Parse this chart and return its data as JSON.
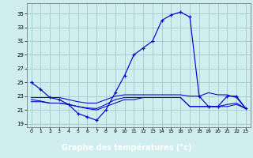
{
  "xlabel": "Graphe des températures (°c)",
  "bg_color": "#d0eef0",
  "grid_color": "#a0cccc",
  "line_color": "#0000cc",
  "label_bg": "#0000aa",
  "xlim": [
    -0.5,
    23.5
  ],
  "ylim": [
    18.5,
    36.5
  ],
  "x_ticks": [
    0,
    1,
    2,
    3,
    4,
    5,
    6,
    7,
    8,
    9,
    10,
    11,
    12,
    13,
    14,
    15,
    16,
    17,
    18,
    19,
    20,
    21,
    22,
    23
  ],
  "y_ticks": [
    19,
    21,
    23,
    25,
    27,
    29,
    31,
    33,
    35
  ],
  "main_y": [
    25.0,
    24.0,
    22.8,
    22.5,
    21.8,
    20.5,
    20.0,
    19.5,
    21.0,
    23.5,
    26.0,
    29.0,
    30.0,
    31.0,
    34.0,
    34.8,
    35.2,
    34.5,
    23.0,
    21.5,
    21.5,
    23.0,
    23.0,
    21.2
  ],
  "line2_y": [
    22.8,
    22.8,
    22.8,
    22.8,
    22.5,
    22.2,
    22.0,
    22.0,
    22.5,
    23.0,
    23.2,
    23.2,
    23.2,
    23.2,
    23.2,
    23.2,
    23.2,
    23.0,
    23.0,
    23.5,
    23.2,
    23.2,
    22.8,
    21.2
  ],
  "line3_y": [
    22.5,
    22.3,
    22.0,
    22.0,
    21.8,
    21.5,
    21.2,
    21.0,
    21.5,
    22.0,
    22.5,
    22.5,
    22.8,
    22.8,
    22.8,
    22.8,
    22.8,
    21.5,
    21.5,
    21.5,
    21.5,
    21.8,
    22.0,
    21.2
  ],
  "line4_y": [
    22.2,
    22.2,
    22.0,
    22.0,
    21.8,
    21.5,
    21.3,
    21.2,
    21.8,
    22.5,
    22.8,
    22.8,
    22.8,
    22.8,
    22.8,
    22.8,
    22.8,
    21.5,
    21.5,
    21.5,
    21.5,
    21.5,
    21.8,
    21.2
  ]
}
